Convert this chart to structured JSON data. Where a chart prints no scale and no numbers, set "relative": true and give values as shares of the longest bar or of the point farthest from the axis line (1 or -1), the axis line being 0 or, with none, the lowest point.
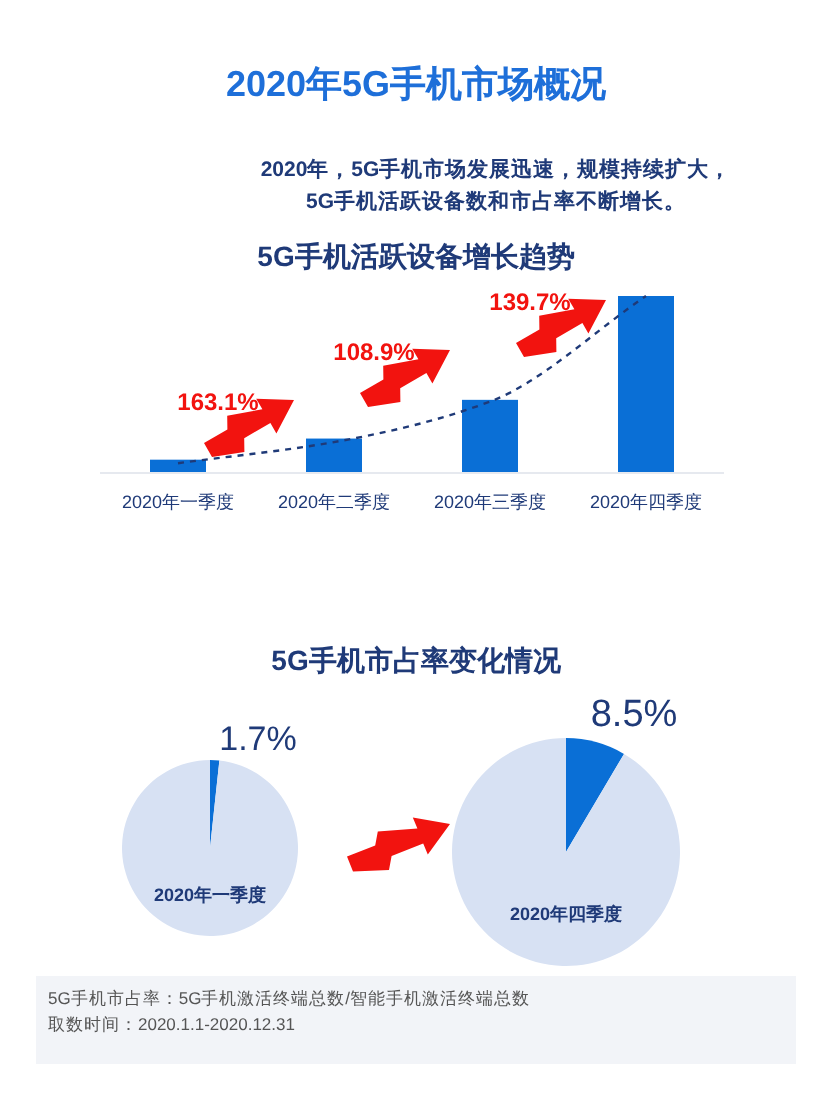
{
  "chart_data": [
    {
      "type": "other",
      "title": "2020年5G手机市场概况",
      "subtitle": "2020年，5G手机市场发展迅速，规模持续扩大，\n5G手机活跃设备数和市占率不断增长。",
      "annotations": [
        "5G手机市占率：5G手机激活终端总数/智能手机激活终端总数",
        "取数时间：2020.1.1-2020.12.31"
      ]
    },
    {
      "type": "bar",
      "title": "5G手机活跃设备增长趋势",
      "relative": true,
      "categories": [
        "2020年一季度",
        "2020年二季度",
        "2020年三季度",
        "2020年四季度"
      ],
      "series": [
        {
          "type": "bar",
          "color": "#0a6fd6",
          "values": [
            0.07,
            0.19,
            0.41,
            1
          ]
        },
        {
          "type": "line",
          "color": "#1f3a78",
          "line_style": "dashed",
          "values": [
            0.05,
            0.17,
            0.4,
            1
          ]
        }
      ],
      "annotations": [
        "163.1%",
        "108.9%",
        "139.7%"
      ]
    },
    {
      "type": "pie",
      "title": "5G手机市占率变化情况",
      "subtitle": "2020年一季度",
      "categories": [
        null,
        null
      ],
      "values": [
        1.7,
        98.3
      ],
      "colors": [
        "#0a6fd6",
        "#d7e1f3"
      ],
      "value_labels": [
        "1.7%",
        null
      ]
    },
    {
      "type": "pie",
      "subtitle": "2020年四季度",
      "categories": [
        null,
        null
      ],
      "values": [
        8.5,
        91.5
      ],
      "colors": [
        "#0a6fd6",
        "#d7e1f3"
      ],
      "value_labels": [
        "8.5%",
        null
      ]
    }
  ]
}
